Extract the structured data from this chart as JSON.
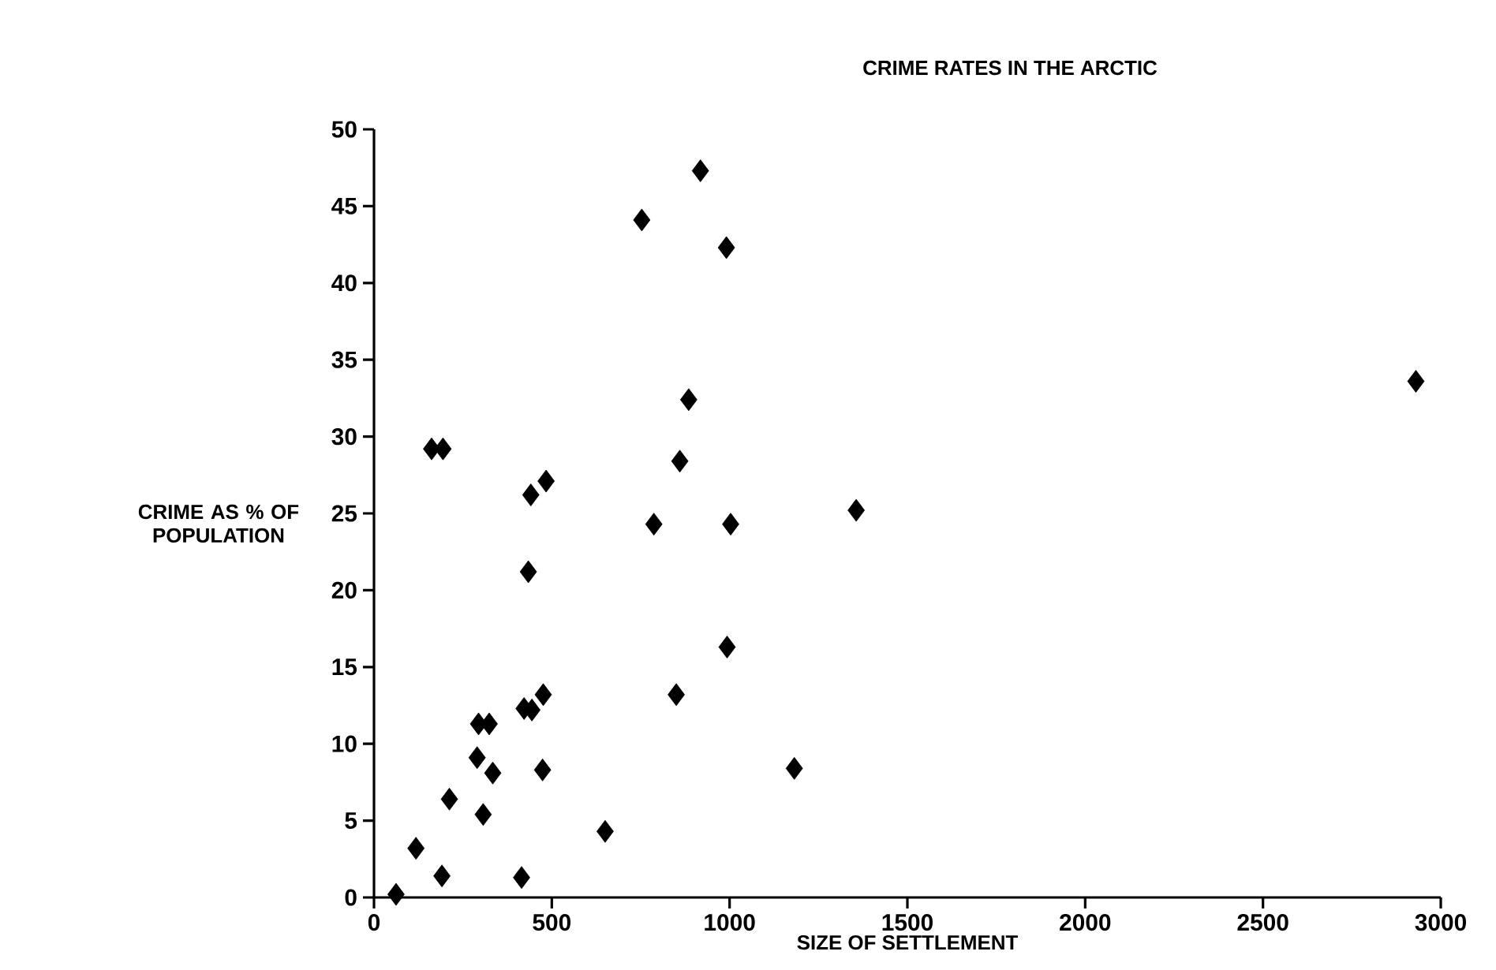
{
  "chart_data": {
    "type": "scatter",
    "title": "CRIME RATES IN THE ARCTIC",
    "xlabel": "SIZE OF SETTLEMENT",
    "ylabel": "CRIME AS % OF POPULATION",
    "color": "#000000",
    "marker": "diamond",
    "xlim": [
      0,
      3000
    ],
    "ylim": [
      0,
      50
    ],
    "xticks": [
      0,
      500,
      1000,
      1500,
      2000,
      2500,
      3000
    ],
    "yticks": [
      0,
      5,
      10,
      15,
      20,
      25,
      30,
      35,
      40,
      45,
      50
    ],
    "grid": false,
    "x": [
      62,
      118,
      191,
      212,
      307,
      290,
      334,
      294,
      324,
      415,
      650,
      474,
      444,
      422,
      476,
      434,
      850,
      993,
      1182,
      787,
      1003,
      1356,
      918,
      753,
      991,
      885,
      860,
      162,
      194,
      441,
      484,
      2930
    ],
    "values": [
      0.2,
      3.2,
      1.4,
      6.4,
      5.4,
      9.1,
      8.1,
      11.3,
      11.3,
      1.3,
      4.3,
      8.3,
      12.2,
      12.3,
      13.2,
      21.2,
      13.2,
      16.3,
      8.4,
      24.3,
      24.3,
      25.2,
      47.3,
      44.1,
      42.3,
      32.4,
      28.4,
      29.2,
      29.2,
      26.2,
      27.1,
      33.6
    ]
  }
}
